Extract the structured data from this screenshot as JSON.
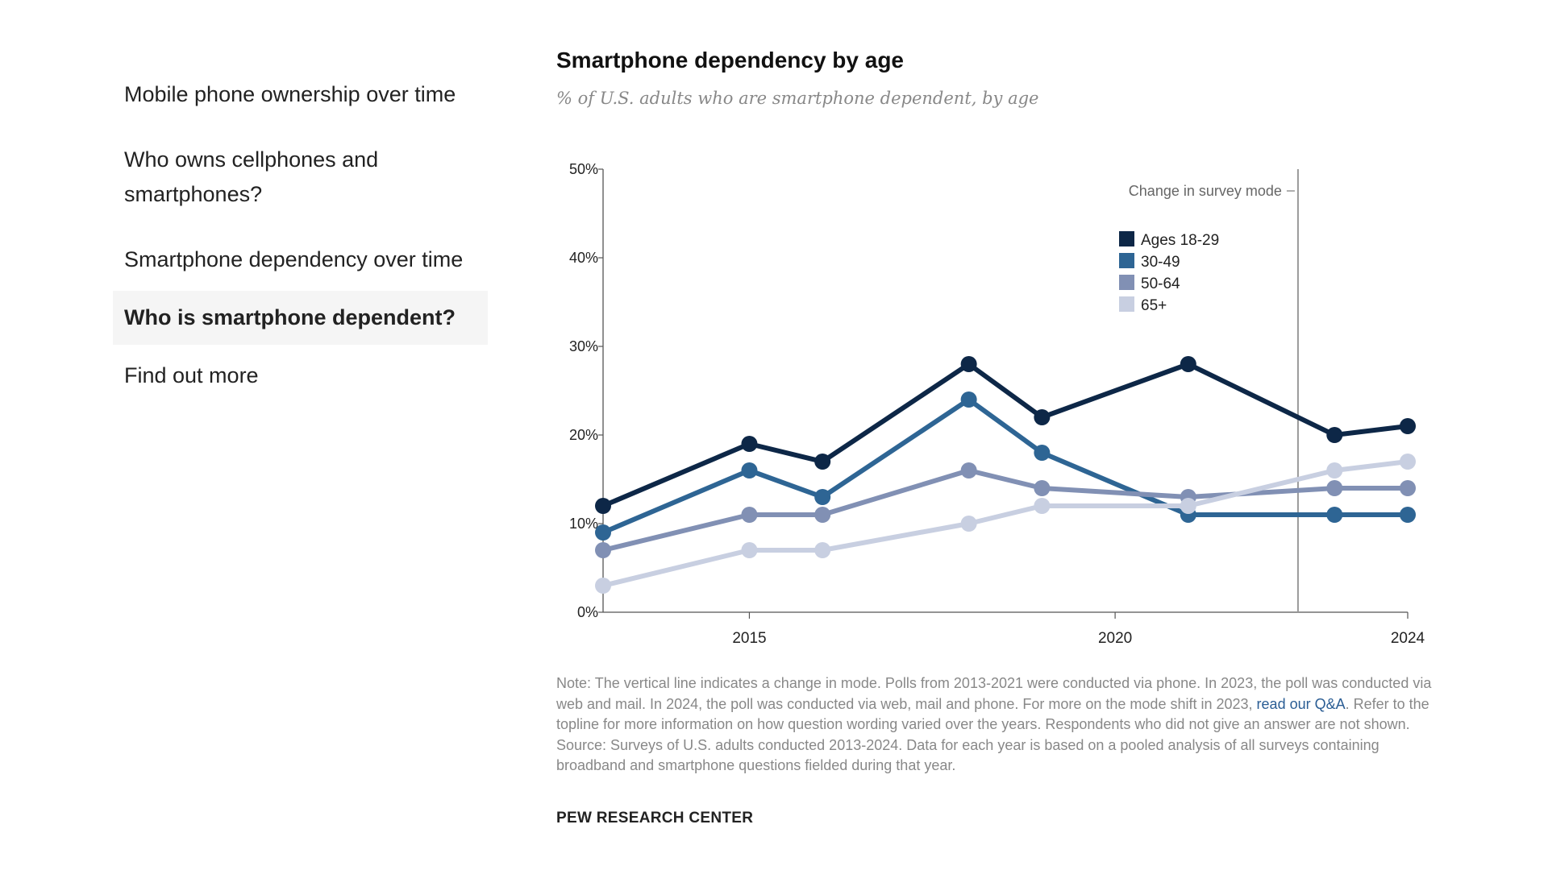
{
  "sidebar": {
    "items": [
      {
        "label": "Mobile phone ownership over time"
      },
      {
        "label": "Who owns cellphones and smartphones?"
      },
      {
        "label": "Smartphone dependency over time"
      },
      {
        "label": "Who is smartphone dependent?",
        "active": true
      },
      {
        "label": "Find out more"
      }
    ]
  },
  "chart_data": {
    "type": "line",
    "title": "Smartphone dependency by age",
    "subtitle": "% of U.S. adults who are smartphone dependent, by age",
    "y_ticks": [
      "0%",
      "10%",
      "20%",
      "30%",
      "40%",
      "50%"
    ],
    "ylim": [
      0,
      50
    ],
    "xlim": [
      2013,
      2024
    ],
    "x_tick_labels": [
      "2015",
      "2020",
      "2024"
    ],
    "x_tick_values": [
      2015,
      2020,
      2024
    ],
    "x": [
      2013,
      2015,
      2016,
      2018,
      2019,
      2021,
      2023,
      2024
    ],
    "series": [
      {
        "name": "Ages 18-29",
        "color": "#0d2747",
        "values": [
          12,
          19,
          17,
          28,
          22,
          28,
          20,
          21
        ]
      },
      {
        "name": "30-49",
        "color": "#2e6594",
        "values": [
          9,
          16,
          13,
          24,
          18,
          11,
          11,
          11
        ]
      },
      {
        "name": "50-64",
        "color": "#8190b4",
        "values": [
          7,
          11,
          11,
          16,
          14,
          13,
          14,
          14
        ]
      },
      {
        "name": "65+",
        "color": "#c8cfe1",
        "values": [
          3,
          7,
          7,
          10,
          12,
          12,
          16,
          17
        ]
      }
    ],
    "annotation": {
      "label": "Change in survey mode",
      "x": 2022.5
    },
    "legend_position": "top-right",
    "grid": false
  },
  "notes": {
    "part1": "Note: The vertical line indicates a change in mode. Polls from 2013-2021 were conducted via phone. In 2023, the poll was conducted via web and mail. In 2024, the poll was conducted via web, mail and phone. For more on the mode shift in 2023,",
    "link": "read our Q&A",
    "part2": ". Refer to the topline for more information on how question wording varied over the years. Respondents who did not give an answer are not shown.",
    "source": "Source: Surveys of U.S. adults conducted 2013-2024. Data for each year is based on a pooled analysis of all surveys containing broadband and smartphone questions fielded during that year."
  },
  "footer": "PEW RESEARCH CENTER"
}
